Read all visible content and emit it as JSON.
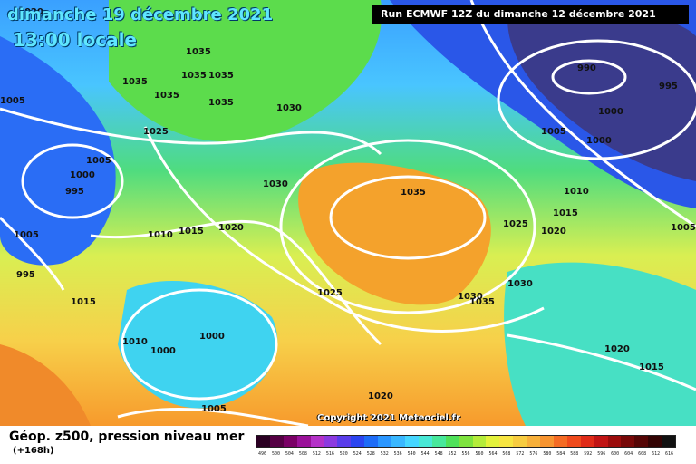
{
  "header": {
    "date": "dimanche 19 décembre 2021",
    "time": "13:00 locale",
    "run": "Run ECMWF 12Z du dimanche 12 décembre 2021"
  },
  "copyright": "Copyright 2021 Meteociel.fr",
  "footer": {
    "title": "Géop. z500, pression niveau mer",
    "subtitle": "(+168h)"
  },
  "isobar_labels": [
    "1020",
    "1035",
    "1030",
    "1035",
    "1035",
    "1035",
    "1035",
    "1035",
    "1005",
    "1025",
    "1000",
    "995",
    "1005",
    "1010",
    "1015",
    "1020",
    "1030",
    "1035",
    "1025",
    "1030",
    "1035",
    "1030",
    "1020",
    "1005",
    "1000",
    "990",
    "995",
    "1005",
    "1000",
    "1010",
    "1015",
    "1005",
    "995",
    "1015",
    "1010",
    "1000",
    "1000",
    "1025",
    "1020",
    "1005",
    "1015",
    "1020"
  ],
  "scale": {
    "labels": [
      "496",
      "500",
      "504",
      "508",
      "512",
      "516",
      "520",
      "524",
      "528",
      "532",
      "536",
      "540",
      "544",
      "548",
      "552",
      "556",
      "560",
      "564",
      "568",
      "572",
      "576",
      "580",
      "584",
      "588",
      "592",
      "596",
      "600",
      "604",
      "608",
      "612",
      "616"
    ],
    "colors": [
      "#2a0022",
      "#550044",
      "#7a0066",
      "#9a1199",
      "#b432c8",
      "#8c3adf",
      "#5a3dea",
      "#2c45f0",
      "#1e6cf7",
      "#2a96ff",
      "#39b7ff",
      "#46d6ff",
      "#48e8d6",
      "#47e89b",
      "#4fe15a",
      "#7ee33e",
      "#b4ec3b",
      "#e3f23c",
      "#f7e542",
      "#f7cc40",
      "#f7b03a",
      "#f79430",
      "#f46b24",
      "#ef4a1c",
      "#e02b18",
      "#c11414",
      "#9b0c0c",
      "#770808",
      "#550505",
      "#330303",
      "#111111"
    ]
  }
}
